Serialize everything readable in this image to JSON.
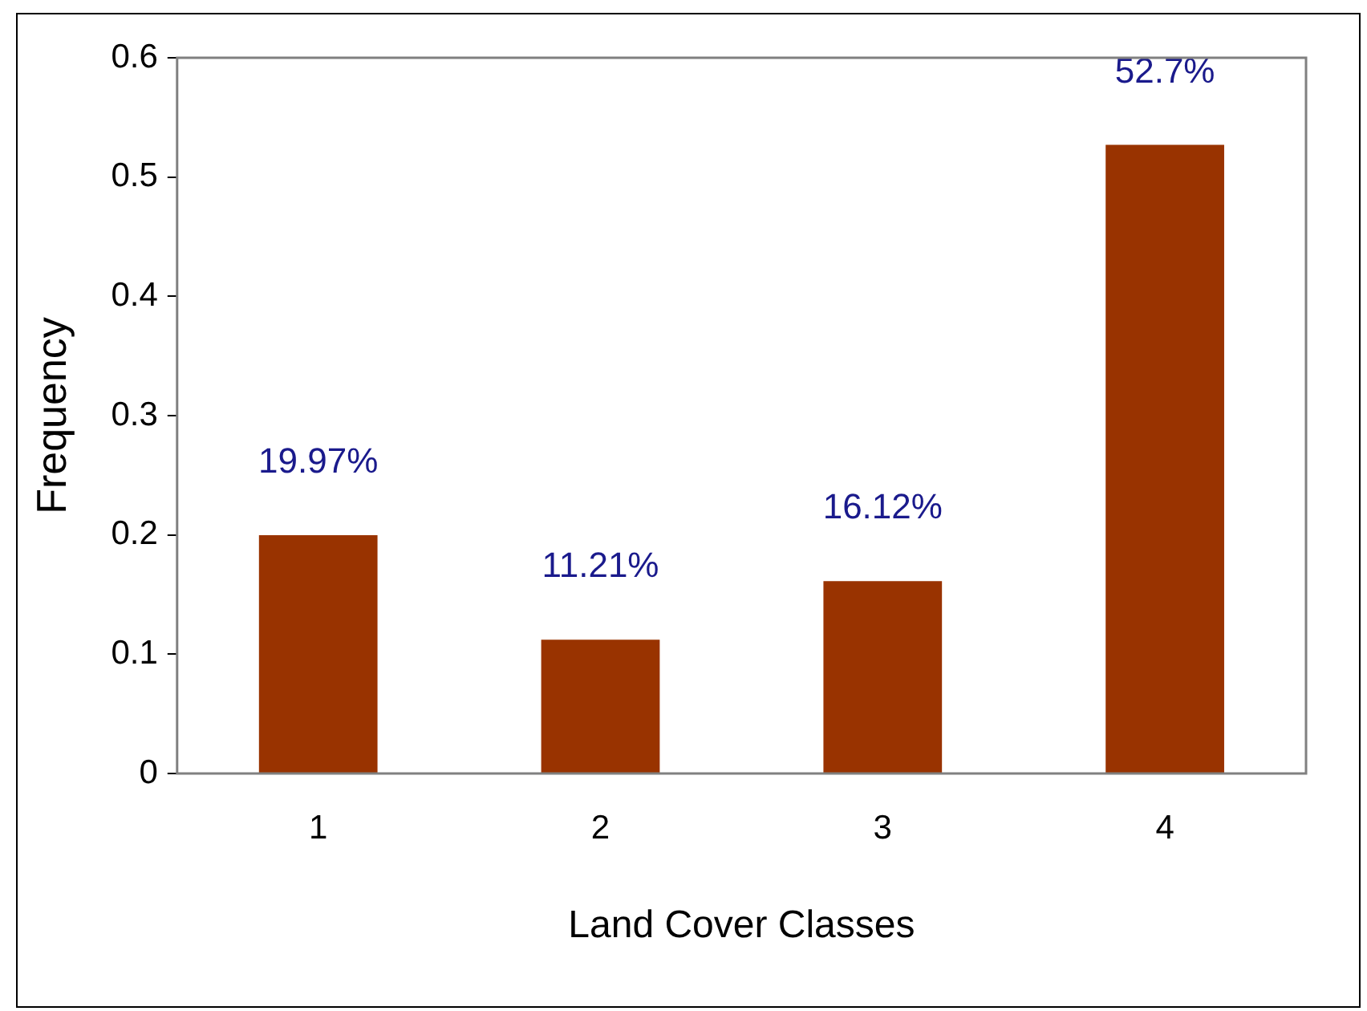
{
  "chart_data": {
    "type": "bar",
    "xlabel": "Land Cover Classes",
    "ylabel": "Frequency",
    "categories": [
      "1",
      "2",
      "3",
      "4"
    ],
    "values": [
      0.1997,
      0.1121,
      0.1612,
      0.527
    ],
    "value_labels": [
      "19.97%",
      "11.21%",
      "16.12%",
      "52.7%"
    ],
    "color": "#993300",
    "ylim": [
      0,
      0.6
    ],
    "yticks": [
      0,
      0.1,
      0.2,
      0.3,
      0.4,
      0.5,
      0.6
    ],
    "grid": false,
    "legend": false
  }
}
